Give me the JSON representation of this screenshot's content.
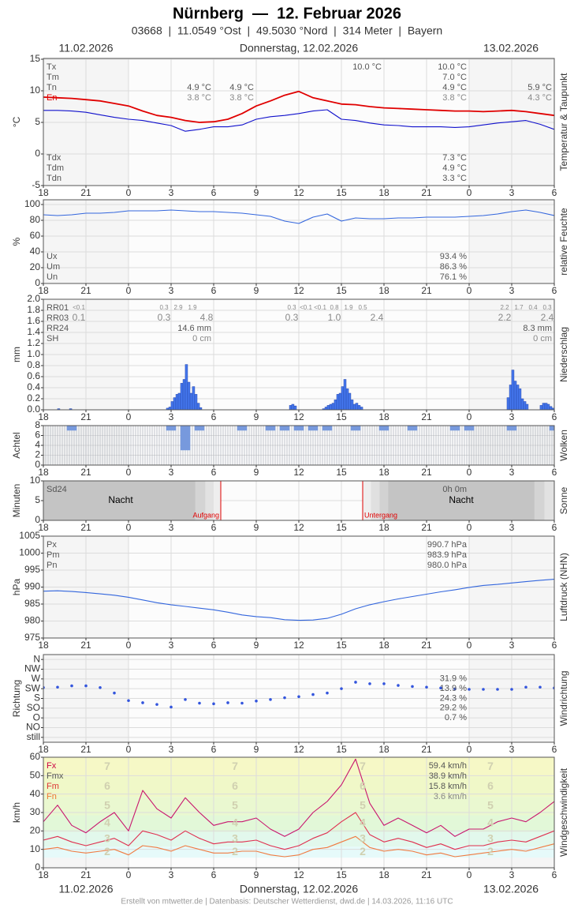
{
  "chart_data": {
    "type": "meteogram",
    "title": "Nürnberg  —  12. Februar 2026",
    "subtitle": "03668  |  11.0549 °Ost  |  49.5030 °Nord  |  314 Meter  |  Bayern",
    "date_left": "11.02.2026",
    "date_center": "Donnerstag, 12.02.2026",
    "date_right": "13.02.2026",
    "footer": "Erstellt von mtwetter.de | Datenbasis: Deutscher Wetterdienst, dwd.de | 14.03.2026, 11:16 UTC",
    "xlim": [
      -6,
      30
    ],
    "xticks": [
      {
        "value": -6,
        "label": "18"
      },
      {
        "value": -3,
        "label": "21"
      },
      0,
      3,
      6,
      9,
      12,
      15,
      18,
      21,
      {
        "value": 24,
        "label": "0"
      },
      {
        "value": 27,
        "label": "3"
      },
      {
        "value": 30,
        "label": "6"
      }
    ],
    "x": [
      -6,
      -5,
      -4,
      -3,
      -2,
      -1,
      0,
      1,
      2,
      3,
      4,
      5,
      6,
      7,
      8,
      9,
      10,
      11,
      12,
      13,
      14,
      15,
      16,
      17,
      18,
      19,
      20,
      21,
      22,
      23,
      24,
      25,
      26,
      27,
      28,
      29,
      30
    ],
    "panels": [
      {
        "type": "line",
        "ylabel": "°C",
        "side_label": "Temperatur & Taupunkt",
        "ylim": [
          -5,
          15
        ],
        "yticks": [
          -5,
          0,
          5,
          10,
          15
        ],
        "series": [
          {
            "color": "#e00000",
            "values": [
              9.0,
              8.9,
              8.8,
              8.6,
              8.4,
              8.0,
              7.6,
              6.8,
              6.1,
              5.8,
              5.3,
              5.0,
              5.1,
              5.5,
              6.4,
              7.6,
              8.4,
              9.3,
              9.9,
              8.9,
              8.4,
              7.9,
              7.8,
              7.5,
              7.3,
              7.2,
              7.1,
              7.0,
              6.9,
              6.8,
              6.8,
              6.7,
              6.8,
              6.9,
              6.7,
              6.4,
              6.1
            ]
          },
          {
            "color": "#1010cc",
            "values": [
              6.9,
              6.9,
              6.8,
              6.6,
              6.2,
              5.8,
              5.5,
              5.3,
              4.9,
              4.5,
              3.6,
              3.9,
              4.3,
              4.3,
              4.6,
              5.5,
              5.9,
              6.1,
              6.4,
              6.8,
              7.0,
              5.5,
              5.3,
              4.9,
              4.6,
              4.5,
              4.3,
              4.3,
              4.3,
              4.2,
              4.3,
              4.6,
              4.9,
              5.1,
              5.3,
              4.7,
              3.9
            ]
          }
        ],
        "blocks": [
          {
            "labels": [
              "Tx",
              "Tm",
              "Tn",
              "En"
            ],
            "colors": [
              "#555555",
              "#555555",
              "#555555",
              "#e00000"
            ],
            "columns": [
              [
                null,
                null,
                "4.9 °C",
                "3.8 °C"
              ],
              [
                null,
                null,
                "4.9 °C",
                "3.8 °C"
              ],
              [
                "10.0 °C",
                null,
                null,
                null
              ],
              [
                "10.0 °C",
                "7.0 °C",
                "4.9 °C",
                "3.8 °C"
              ],
              [
                null,
                null,
                "5.9 °C",
                "4.3 °C"
              ]
            ]
          },
          {
            "labels": [
              "Tdx",
              "Tdm",
              "Tdn"
            ],
            "columns": [
              [
                "7.3 °C",
                "4.9 °C",
                "3.3 °C"
              ]
            ]
          }
        ]
      },
      {
        "type": "line",
        "ylabel": "%",
        "side_label": "relative Feuchte",
        "ylim": [
          0,
          100
        ],
        "yticks": [
          0,
          20,
          40,
          60,
          80,
          100
        ],
        "series": [
          {
            "color": "#3366dd",
            "values": [
              87,
              86,
              87,
              89,
              89,
              90,
              92,
              92,
              92,
              93,
              92,
              91,
              91,
              90,
              89,
              87,
              85,
              79,
              76,
              84,
              88,
              79,
              83,
              82,
              82,
              83,
              83,
              84,
              84,
              84,
              85,
              86,
              88,
              91,
              93,
              90,
              86
            ]
          }
        ],
        "blocks": [
          {
            "labels": [
              "Ux",
              "Um",
              "Un"
            ],
            "columns": [
              [
                "93.4 %",
                "86.3 %",
                "76.1 %"
              ]
            ]
          }
        ]
      },
      {
        "type": "bar",
        "ylabel": "mm",
        "side_label": "Niederschlag",
        "ylim": [
          0,
          2
        ],
        "yticks": [
          {
            "value": 0,
            "label": "0.0"
          },
          0.2,
          0.4,
          0.6,
          0.8,
          {
            "value": 1,
            "label": "1.0"
          },
          1.2,
          1.4,
          1.6,
          1.8,
          {
            "value": 2,
            "label": "2.0"
          }
        ],
        "color": "#4477ee",
        "x": [
          -4.92,
          -4.08,
          2.75,
          2.92,
          3.08,
          3.25,
          3.42,
          3.58,
          3.75,
          3.92,
          4.08,
          4.25,
          4.42,
          4.58,
          4.75,
          4.92,
          5.08,
          11.42,
          11.58,
          11.75,
          13.75,
          13.92,
          14.08,
          14.25,
          14.42,
          14.58,
          14.75,
          14.92,
          15.08,
          15.25,
          15.42,
          15.58,
          15.75,
          15.92,
          16.08,
          16.25,
          16.42,
          26.75,
          26.92,
          27.08,
          27.25,
          27.42,
          27.58,
          27.75,
          27.92,
          28.08,
          29.08,
          29.25,
          29.42,
          29.58,
          29.75,
          29.92
        ],
        "values": [
          0.02,
          0.02,
          0.03,
          0.05,
          0.15,
          0.22,
          0.28,
          0.3,
          0.48,
          0.55,
          0.82,
          0.5,
          0.3,
          0.42,
          0.28,
          0.12,
          0.04,
          0.08,
          0.1,
          0.07,
          0.02,
          0.05,
          0.08,
          0.1,
          0.12,
          0.18,
          0.28,
          0.3,
          0.42,
          0.55,
          0.38,
          0.3,
          0.18,
          0.1,
          0.12,
          0.08,
          0.05,
          0.22,
          0.45,
          0.72,
          0.52,
          0.45,
          0.38,
          0.2,
          0.15,
          0.1,
          0.08,
          0.12,
          0.12,
          0.1,
          0.06,
          0.03
        ],
        "blocks": [
          {
            "labels": [
              "RR01",
              "RR03",
              "RR24",
              "SH"
            ],
            "columns": [
              [
                null,
                null,
                "14.6 mm",
                "0 cm"
              ],
              [
                null,
                null,
                "8.3 mm",
                "0 cm"
              ]
            ]
          }
        ],
        "rr01": {
          "x": [
            -3.5,
            2.5,
            3.5,
            4.5,
            11.5,
            12.5,
            13.5,
            14.5,
            15.5,
            16.5,
            26.5,
            27.5,
            28.5,
            29.5
          ],
          "labels": [
            "<0.1",
            "0.3",
            "2.9",
            "1.9",
            "0.3",
            "<0.1",
            "<0.1",
            "0.8",
            "1.9",
            "0.5",
            "2.2",
            "1.7",
            "0.4",
            "0.3"
          ]
        },
        "rr03": {
          "x": [
            -3.5,
            2.5,
            5.5,
            11.5,
            14.5,
            17.5,
            26.5,
            29.5
          ],
          "labels": [
            "0.1",
            "0.3",
            "4.8",
            "0.3",
            "1.0",
            "2.4",
            "2.2",
            "2.4"
          ]
        }
      },
      {
        "type": "cloud",
        "ylabel": "Achtel",
        "side_label": "Wolken",
        "ylim": [
          0,
          8
        ],
        "yticks": [
          0,
          2,
          4,
          6,
          8
        ],
        "color": "#7799dd",
        "values": [
          8,
          8,
          7,
          8,
          8,
          8,
          8,
          8,
          8,
          7,
          3,
          7,
          8,
          8,
          7,
          8,
          7,
          7,
          7,
          7,
          7,
          8,
          7,
          8,
          7,
          8,
          7,
          8,
          8,
          7,
          7,
          8,
          8,
          7,
          8,
          8,
          7
        ]
      },
      {
        "type": "sun",
        "ylabel": "Minuten",
        "side_label": "Sonne",
        "ylim": [
          0,
          10
        ],
        "yticks": [
          0,
          5,
          10
        ],
        "night_label": "Nacht",
        "sunrise": {
          "x": 6.5,
          "label": "Aufgang"
        },
        "sunset": {
          "x": 16.5,
          "label": "Untergang"
        },
        "blocks": [
          {
            "labels": [
              "Sd24"
            ],
            "columns": [
              [
                "0h 0m"
              ]
            ]
          }
        ]
      },
      {
        "type": "line",
        "ylabel": "hPa",
        "side_label": "Luftdruck (NHN)",
        "ylim": [
          975,
          1005
        ],
        "yticks": [
          975,
          980,
          985,
          990,
          995,
          1000,
          1005
        ],
        "series": [
          {
            "color": "#3366dd",
            "values": [
              988.8,
              988.9,
              988.7,
              988.4,
              988.0,
              987.6,
              987.0,
              986.2,
              985.4,
              984.8,
              984.3,
              983.8,
              983.3,
              982.6,
              981.8,
              981.3,
              981.0,
              980.4,
              980.2,
              980.3,
              980.8,
              982.0,
              983.6,
              984.8,
              985.7,
              986.5,
              987.2,
              987.9,
              988.6,
              989.2,
              989.9,
              990.5,
              990.8,
              991.2,
              991.6,
              992.0,
              992.3
            ]
          }
        ],
        "blocks": [
          {
            "labels": [
              "Px",
              "Pm",
              "Pn"
            ],
            "columns": [
              [
                "990.7 hPa",
                "983.9 hPa",
                "980.0 hPa"
              ]
            ]
          }
        ]
      },
      {
        "type": "scatter",
        "ylabel": "Richtung",
        "side_label": "Windrichtung",
        "ylim": [
          -22.5,
          382.5
        ],
        "yticks": [
          {
            "value": 360,
            "label": "N"
          },
          {
            "value": 315,
            "label": "NW"
          },
          {
            "value": 270,
            "label": "W"
          },
          {
            "value": 225,
            "label": "SW"
          },
          {
            "value": 180,
            "label": "S"
          },
          {
            "value": 135,
            "label": "SO"
          },
          {
            "value": 90,
            "label": "O"
          },
          {
            "value": 45,
            "label": "NO"
          },
          {
            "value": 0,
            "label": "still"
          }
        ],
        "color": "#3355dd",
        "values": [
          230,
          232,
          238,
          238,
          230,
          205,
          170,
          160,
          152,
          140,
          175,
          158,
          155,
          160,
          158,
          168,
          175,
          183,
          188,
          198,
          205,
          225,
          255,
          248,
          248,
          240,
          235,
          232,
          228,
          224,
          222,
          222,
          222,
          222,
          232,
          232,
          228
        ],
        "shares": [
          "31.9 %",
          "13.9 %",
          "24.3 %",
          "29.2 %",
          "0.7 %"
        ]
      },
      {
        "type": "line",
        "ylabel": "km/h",
        "side_label": "Windgeschwindigkeit",
        "ylim": [
          0,
          60
        ],
        "yticks": [
          0,
          10,
          20,
          30,
          40,
          50,
          60
        ],
        "beaufort": {
          "levels": [
            2,
            3,
            4,
            5,
            6,
            7
          ],
          "edges": [
            5.5,
            11.5,
            19.5,
            28.5,
            38.5,
            49.5,
            61.5
          ],
          "colors": [
            "#e6fafa",
            "#e2f8ec",
            "#e2f8d8",
            "#eaf8d0",
            "#f0f8c8",
            "#f6f8c6"
          ]
        },
        "series": [
          {
            "color": "#c8166f",
            "values": [
              25,
              34,
              23,
              19,
              25,
              30,
              20,
              42,
              32,
              27,
              38,
              30,
              23,
              25,
              25,
              27,
              21,
              17,
              21,
              30,
              36,
              45,
              59,
              35,
              23,
              27,
              23,
              19,
              23,
              17,
              21,
              21,
              25,
              27,
              25,
              30,
              36
            ]
          },
          {
            "color": "#e03050",
            "values": [
              15,
              17,
              14,
              12,
              14,
              16,
              12,
              20,
              18,
              15,
              20,
              16,
              13,
              14,
              14,
              15,
              12,
              10,
              12,
              16,
              19,
              25,
              30,
              18,
              14,
              16,
              14,
              11,
              13,
              10,
              12,
              12,
              14,
              15,
              14,
              17,
              20
            ]
          },
          {
            "color": "#f07a40",
            "values": [
              10,
              11,
              9,
              8,
              9,
              10,
              7,
              12,
              11,
              9,
              12,
              10,
              8,
              8,
              9,
              9,
              7,
              6,
              7,
              10,
              11,
              14,
              17,
              11,
              9,
              10,
              9,
              7,
              8,
              6,
              7,
              8,
              9,
              10,
              9,
              11,
              13
            ]
          }
        ],
        "blocks": [
          {
            "labels": [
              "Fx",
              "Fmx",
              "Fm",
              "Fn"
            ],
            "colors": [
              "#cc0044",
              "#555555",
              "#dd3333",
              "#ee7733"
            ],
            "columns": [
              [
                "59.4 km/h",
                "38.9 km/h",
                "15.8 km/h",
                "3.6 km/h"
              ]
            ]
          }
        ]
      }
    ]
  }
}
